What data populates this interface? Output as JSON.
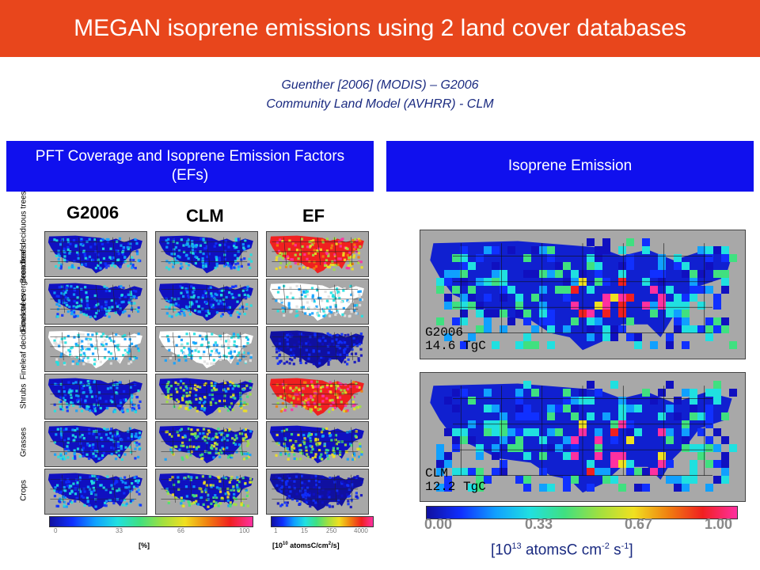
{
  "header": {
    "title": "MEGAN isoprene emissions using 2 land cover databases"
  },
  "subtitle": {
    "line1": "Guenther [2006] (MODIS)  – G2006",
    "line2": "Community Land Model (AVHRR) - CLM"
  },
  "left_panel": {
    "header": "PFT Coverage and Isoprene Emission Factors (EFs)",
    "columns": [
      "G2006",
      "CLM",
      "EF"
    ],
    "rows": [
      "Broadleaf deciduous trees",
      "Fineleaf evergreen trees",
      "Fineleaf deciduous trees",
      "Shrubs",
      "Grasses",
      "Crops"
    ],
    "coverage_colorbar": {
      "ticks": [
        "0",
        "33",
        "66",
        "100"
      ],
      "unit": "[%]"
    },
    "ef_colorbar": {
      "ticks": [
        "1",
        "15",
        "250",
        "4000"
      ],
      "unit_pre": "[10",
      "unit_exp": "10",
      "unit_mid": " atomsC/cm",
      "unit_exp2": "2",
      "unit_post": "/s]"
    }
  },
  "right_panel": {
    "header": "Isoprene Emission",
    "maps": [
      {
        "label": "G2006",
        "total": "14.6 TgC"
      },
      {
        "label": "CLM",
        "total": "12.2 TgC"
      }
    ],
    "colorbar": {
      "ticks": [
        "0.00",
        "0.33",
        "0.67",
        "1.00"
      ]
    },
    "unit": {
      "pre": "[10",
      "exp1": "13",
      "mid": " atomsC cm",
      "exp2": "-2",
      "mid2": " s",
      "exp3": "-1",
      "post": "]"
    }
  },
  "colors": {
    "title_bar": "#e8461c",
    "panel_header": "#1010ee",
    "ocean": "#a8a8a8"
  }
}
